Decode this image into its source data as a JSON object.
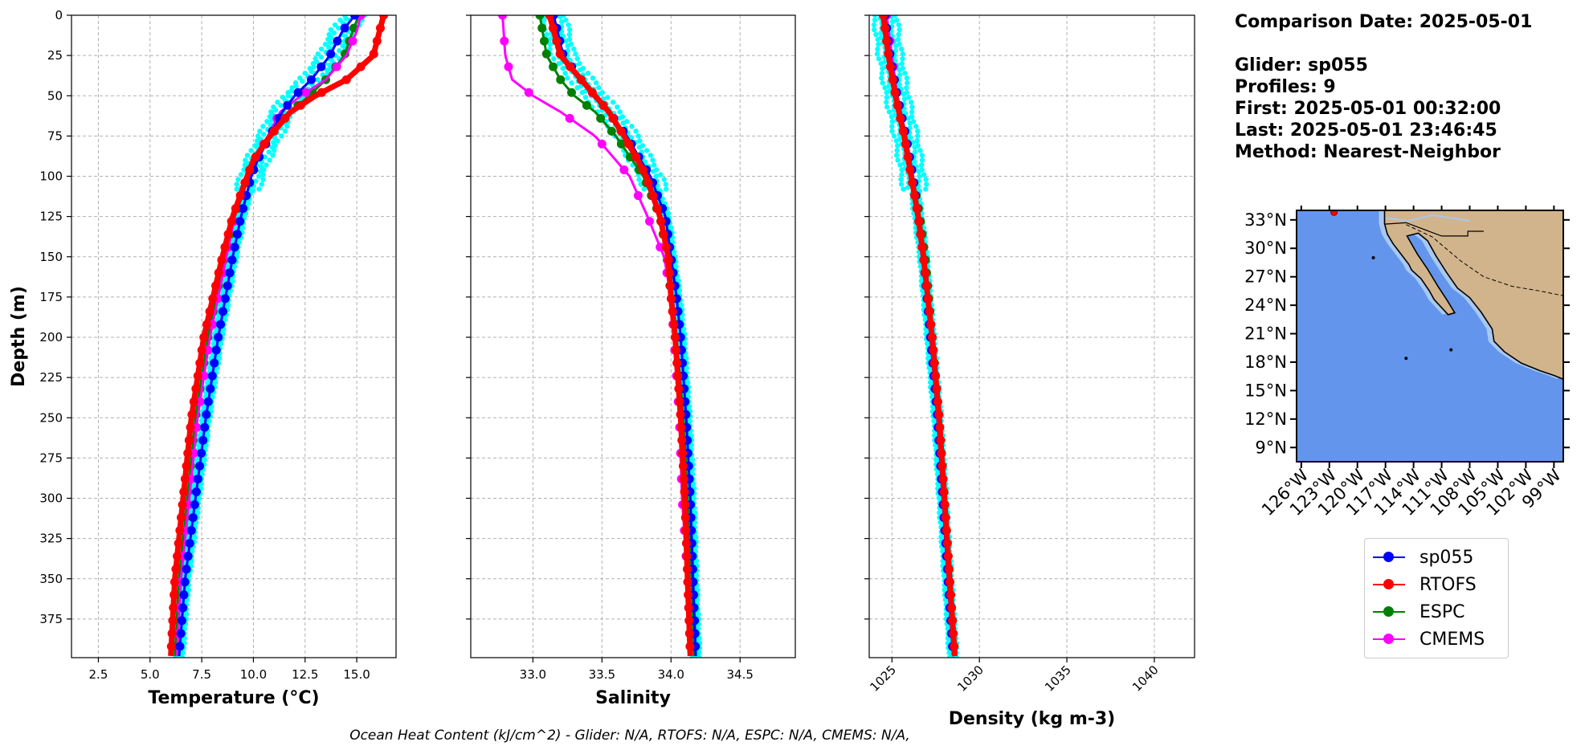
{
  "info": {
    "comparison_date": "Comparison Date: 2025-05-01",
    "glider": "Glider: sp055",
    "profiles": "Profiles: 9",
    "first": "First: 2025-05-01 00:32:00",
    "last": "Last: 2025-05-01 23:46:45",
    "method": "Method: Nearest-Neighbor"
  },
  "footer": "Ocean Heat Content (kJ/cm^2) - Glider: N/A,  RTOFS: N/A,  ESPC: N/A,  CMEMS: N/A,",
  "legend": [
    {
      "name": "sp055",
      "color": "#0000ff"
    },
    {
      "name": "RTOFS",
      "color": "#ff0000"
    },
    {
      "name": "ESPC",
      "color": "#008000"
    },
    {
      "name": "CMEMS",
      "color": "#ff00ff"
    }
  ],
  "colors": {
    "glider_raw": "#00ffff",
    "ocean": "#6495ed",
    "shelf": "#a8c8ee",
    "land": "#d2b48c"
  },
  "chart_data": [
    {
      "type": "line",
      "xlabel": "Temperature (°C)",
      "ylabel": "Depth (m)",
      "xlim": [
        1.2,
        16.9
      ],
      "ylim": [
        399,
        0
      ],
      "xticks": [
        "2.5",
        "5.0",
        "7.5",
        "10.0",
        "12.5",
        "15.0"
      ],
      "yticks": [
        "0",
        "25",
        "50",
        "75",
        "100",
        "125",
        "150",
        "175",
        "200",
        "225",
        "250",
        "275",
        "300",
        "325",
        "350",
        "375"
      ],
      "grid": true,
      "depth": [
        0,
        10,
        25,
        40,
        50,
        60,
        75,
        90,
        100,
        125,
        150,
        200,
        250,
        300,
        350,
        399
      ],
      "series": [
        {
          "name": "sp055",
          "values": [
            14.9,
            14.3,
            13.7,
            12.8,
            12.0,
            11.4,
            10.8,
            10.2,
            9.9,
            9.4,
            9.0,
            8.3,
            7.7,
            7.2,
            6.7,
            6.4
          ]
        },
        {
          "name": "RTOFS",
          "values": [
            16.3,
            16.1,
            15.8,
            14.5,
            13.0,
            11.8,
            10.8,
            10.0,
            9.7,
            9.0,
            8.5,
            7.6,
            7.0,
            6.6,
            6.2,
            6.0
          ]
        },
        {
          "name": "ESPC",
          "values": [
            15.1,
            14.8,
            14.4,
            13.5,
            12.7,
            11.8,
            10.7,
            10.2,
            9.8,
            9.1,
            8.6,
            7.8,
            7.2,
            6.8,
            6.4,
            6.2
          ]
        },
        {
          "name": "CMEMS",
          "values": [
            15.2,
            15.0,
            14.5,
            13.5,
            12.3,
            11.3,
            10.7,
            10.1,
            9.7,
            9.1,
            8.7,
            7.9,
            7.3,
            6.9,
            6.5,
            6.3
          ]
        }
      ]
    },
    {
      "type": "line",
      "xlabel": "Salinity",
      "ylabel": "",
      "xlim": [
        32.55,
        34.9
      ],
      "ylim": [
        399,
        0
      ],
      "xticks": [
        "33.0",
        "33.5",
        "34.0",
        "34.5"
      ],
      "grid": true,
      "depth": [
        0,
        25,
        40,
        50,
        60,
        75,
        90,
        100,
        125,
        150,
        175,
        200,
        250,
        300,
        350,
        399
      ],
      "series": [
        {
          "name": "sp055",
          "values": [
            33.15,
            33.22,
            33.35,
            33.45,
            33.55,
            33.68,
            33.78,
            33.85,
            33.96,
            34.0,
            34.04,
            34.07,
            34.11,
            34.14,
            34.16,
            34.18
          ]
        },
        {
          "name": "RTOFS",
          "values": [
            33.12,
            33.2,
            33.35,
            33.45,
            33.55,
            33.66,
            33.76,
            33.82,
            33.92,
            33.98,
            34.0,
            34.03,
            34.07,
            34.1,
            34.12,
            34.14
          ]
        },
        {
          "name": "ESPC",
          "values": [
            33.05,
            33.1,
            33.2,
            33.3,
            33.45,
            33.6,
            33.72,
            33.8,
            33.92,
            33.97,
            34.0,
            34.04,
            34.09,
            34.12,
            34.15,
            34.17
          ]
        },
        {
          "name": "CMEMS",
          "values": [
            32.78,
            32.8,
            32.85,
            33.0,
            33.2,
            33.45,
            33.6,
            33.7,
            33.83,
            33.95,
            34.0,
            34.02,
            34.06,
            34.08,
            34.12,
            34.15
          ]
        }
      ]
    },
    {
      "type": "line",
      "xlabel": "Density (kg m-3)",
      "ylabel": "",
      "xlim": [
        1023.7,
        1042.3
      ],
      "ylim": [
        399,
        0
      ],
      "xticks": [
        "1025",
        "1030",
        "1035",
        "1040"
      ],
      "grid": true,
      "depth": [
        0,
        25,
        50,
        75,
        100,
        125,
        150,
        200,
        250,
        300,
        350,
        399
      ],
      "series": [
        {
          "name": "sp055",
          "values": [
            1024.6,
            1024.9,
            1025.3,
            1025.8,
            1026.2,
            1026.5,
            1026.8,
            1027.2,
            1027.6,
            1027.9,
            1028.2,
            1028.5
          ]
        },
        {
          "name": "RTOFS",
          "values": [
            1024.5,
            1024.8,
            1025.2,
            1025.7,
            1026.1,
            1026.5,
            1026.8,
            1027.3,
            1027.7,
            1028.0,
            1028.3,
            1028.6
          ]
        },
        {
          "name": "ESPC",
          "values": [
            1024.6,
            1024.9,
            1025.3,
            1025.8,
            1026.2,
            1026.6,
            1026.9,
            1027.3,
            1027.7,
            1028.0,
            1028.3,
            1028.6
          ]
        },
        {
          "name": "CMEMS",
          "values": [
            1024.7,
            1025.0,
            1025.3,
            1025.8,
            1026.2,
            1026.5,
            1026.8,
            1027.2,
            1027.6,
            1027.9,
            1028.2,
            1028.5
          ]
        }
      ]
    },
    {
      "type": "map",
      "lat_labels": [
        "33°N",
        "30°N",
        "27°N",
        "24°N",
        "21°N",
        "18°N",
        "15°N",
        "12°N",
        "9°N"
      ],
      "lon_labels": [
        "126°W",
        "123°W",
        "120°W",
        "117°W",
        "114°W",
        "111°W",
        "108°W",
        "105°W",
        "102°W",
        "99°W"
      ],
      "lat_values": [
        33,
        30,
        27,
        24,
        21,
        18,
        15,
        12,
        9
      ],
      "lon_values": [
        -126,
        -123,
        -120,
        -117,
        -114,
        -111,
        -108,
        -105,
        -102,
        -99
      ],
      "extent": [
        -126.5,
        -98,
        7.5,
        34
      ],
      "glider_position": {
        "lon": -122.5,
        "lat": 33.8
      }
    }
  ]
}
